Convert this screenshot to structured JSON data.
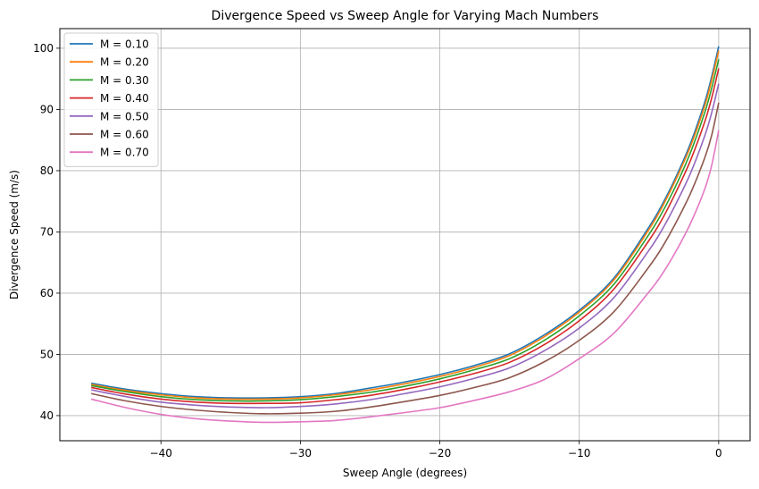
{
  "chart_data": {
    "type": "line",
    "title": "Divergence Speed vs Sweep Angle for Varying Mach Numbers",
    "xlabel": "Sweep Angle (degrees)",
    "ylabel": "Divergence Speed (m/s)",
    "xlim": [
      -47.25,
      2.25
    ],
    "ylim": [
      35.9,
      103.2
    ],
    "xticks": [
      -40,
      -30,
      -20,
      -10,
      0
    ],
    "xtick_labels": [
      "−40",
      "−30",
      "−20",
      "−10",
      "0"
    ],
    "yticks": [
      40,
      50,
      60,
      70,
      80,
      90,
      100
    ],
    "ytick_labels": [
      "40",
      "50",
      "60",
      "70",
      "80",
      "90",
      "100"
    ],
    "grid": true,
    "legend_position": "top-left",
    "x": [
      -45,
      -42.5,
      -40,
      -37.5,
      -35,
      -32.5,
      -30,
      -27.5,
      -25,
      -22.5,
      -20,
      -17.5,
      -15,
      -12.5,
      -10,
      -7.5,
      -5,
      -4,
      -3,
      -2,
      -1,
      -0.5,
      0
    ],
    "series": [
      {
        "name": "M = 0.10",
        "color": "#1f77b4",
        "values": [
          45.3,
          44.3,
          43.6,
          43.1,
          42.9,
          42.9,
          43.1,
          43.6,
          44.5,
          45.5,
          46.7,
          48.2,
          50.1,
          53.2,
          57.2,
          62.5,
          70.8,
          74.7,
          79.3,
          84.6,
          91.2,
          95.4,
          100.3
        ]
      },
      {
        "name": "M = 0.20",
        "color": "#ff7f0e",
        "values": [
          45.1,
          44.1,
          43.4,
          42.9,
          42.7,
          42.7,
          42.9,
          43.4,
          44.2,
          45.2,
          46.4,
          47.9,
          49.8,
          52.9,
          56.9,
          62.2,
          70.4,
          74.3,
          78.9,
          84.1,
          90.6,
          94.8,
          99.6
        ]
      },
      {
        "name": "M = 0.30",
        "color": "#2ca02c",
        "values": [
          44.9,
          43.9,
          43.1,
          42.6,
          42.4,
          42.4,
          42.6,
          43.1,
          43.8,
          44.8,
          46.0,
          47.5,
          49.3,
          52.3,
          56.3,
          61.5,
          69.6,
          73.4,
          77.9,
          83.1,
          89.5,
          93.5,
          98.2
        ]
      },
      {
        "name": "M = 0.40",
        "color": "#d62728",
        "values": [
          44.6,
          43.5,
          42.7,
          42.2,
          42.0,
          42.0,
          42.1,
          42.6,
          43.3,
          44.3,
          45.5,
          46.9,
          48.7,
          51.6,
          55.5,
          60.7,
          68.6,
          72.3,
          76.8,
          81.8,
          88.0,
          91.9,
          96.7
        ]
      },
      {
        "name": "M = 0.50",
        "color": "#9467bd",
        "values": [
          44.2,
          43.1,
          42.2,
          41.7,
          41.4,
          41.3,
          41.5,
          41.9,
          42.6,
          43.6,
          44.7,
          46.1,
          47.8,
          50.6,
          54.3,
          59.3,
          67.0,
          70.6,
          74.9,
          79.7,
          85.7,
          89.5,
          94.2
        ]
      },
      {
        "name": "M = 0.60",
        "color": "#8c564b",
        "values": [
          43.6,
          42.4,
          41.5,
          40.9,
          40.5,
          40.3,
          40.4,
          40.7,
          41.4,
          42.3,
          43.3,
          44.6,
          46.2,
          48.8,
          52.3,
          57.0,
          64.3,
          67.7,
          71.8,
          76.4,
          82.1,
          85.8,
          91.1
        ]
      },
      {
        "name": "M = 0.70",
        "color": "#e377c2",
        "values": [
          42.7,
          41.3,
          40.2,
          39.5,
          39.1,
          38.9,
          39.0,
          39.2,
          39.8,
          40.5,
          41.3,
          42.5,
          43.9,
          45.9,
          49.3,
          53.5,
          60.2,
          63.3,
          67.1,
          71.5,
          77.0,
          80.9,
          86.6
        ]
      }
    ]
  }
}
